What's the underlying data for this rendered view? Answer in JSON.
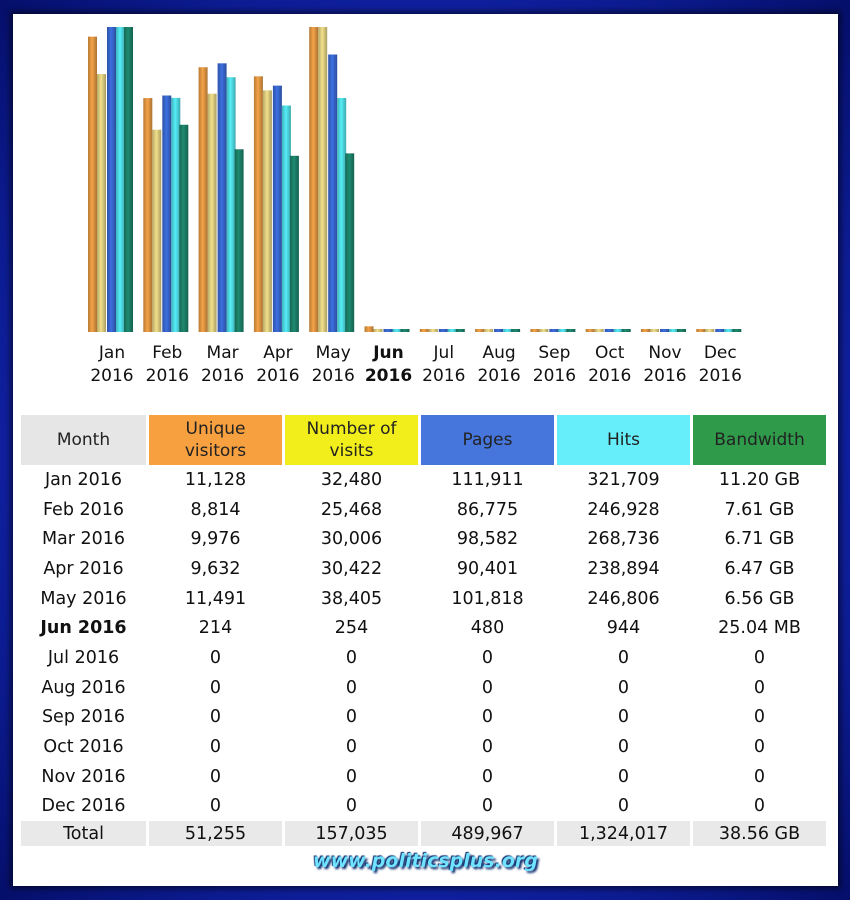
{
  "chart_data": {
    "type": "bar",
    "categories": [
      "Jan 2016",
      "Feb 2016",
      "Mar 2016",
      "Apr 2016",
      "May 2016",
      "Jun 2016",
      "Jul 2016",
      "Aug 2016",
      "Sep 2016",
      "Oct 2016",
      "Nov 2016",
      "Dec 2016"
    ],
    "month_labels": [
      {
        "month": "Jan",
        "year": "2016"
      },
      {
        "month": "Feb",
        "year": "2016"
      },
      {
        "month": "Mar",
        "year": "2016"
      },
      {
        "month": "Apr",
        "year": "2016"
      },
      {
        "month": "May",
        "year": "2016"
      },
      {
        "month": "Jun",
        "year": "2016"
      },
      {
        "month": "Jul",
        "year": "2016"
      },
      {
        "month": "Aug",
        "year": "2016"
      },
      {
        "month": "Sep",
        "year": "2016"
      },
      {
        "month": "Oct",
        "year": "2016"
      },
      {
        "month": "Nov",
        "year": "2016"
      },
      {
        "month": "Dec",
        "year": "2016"
      }
    ],
    "highlight_index": 5,
    "series": [
      {
        "name": "Unique visitors",
        "color": "#f4a347",
        "values": [
          11128,
          8814,
          9976,
          9632,
          11491,
          214,
          0,
          0,
          0,
          0,
          0,
          0
        ]
      },
      {
        "name": "Number of visits",
        "color": "#f2e08a",
        "values": [
          32480,
          25468,
          30006,
          30422,
          38405,
          254,
          0,
          0,
          0,
          0,
          0,
          0
        ]
      },
      {
        "name": "Pages",
        "color": "#3d6fe0",
        "values": [
          111911,
          86775,
          98582,
          90401,
          101818,
          480,
          0,
          0,
          0,
          0,
          0,
          0
        ]
      },
      {
        "name": "Hits",
        "color": "#55eef8",
        "values": [
          321709,
          246928,
          268736,
          238894,
          246806,
          944,
          0,
          0,
          0,
          0,
          0,
          0
        ]
      },
      {
        "name": "Bandwidth",
        "color": "#1e8a70",
        "unit": "GB",
        "values": [
          11.2,
          7.61,
          6.71,
          6.47,
          6.56,
          0.02445,
          0,
          0,
          0,
          0,
          0,
          0
        ]
      }
    ],
    "grid": false,
    "legend": "table below"
  },
  "table": {
    "headers": {
      "month": "Month",
      "unique": [
        "Unique",
        "visitors"
      ],
      "visits": [
        "Number of",
        "visits"
      ],
      "pages": "Pages",
      "hits": "Hits",
      "bandwidth": "Bandwidth"
    },
    "header_colors": {
      "month": "#e6e6e6",
      "unique": "#f7a040",
      "visits": "#f2ee1c",
      "pages": "#4676dc",
      "hits": "#66eefa",
      "bandwidth": "#2e9a4a"
    },
    "rows": [
      [
        "Jan 2016",
        "11,128",
        "32,480",
        "111,911",
        "321,709",
        "11.20 GB"
      ],
      [
        "Feb 2016",
        "8,814",
        "25,468",
        "86,775",
        "246,928",
        "7.61 GB"
      ],
      [
        "Mar 2016",
        "9,976",
        "30,006",
        "98,582",
        "268,736",
        "6.71 GB"
      ],
      [
        "Apr 2016",
        "9,632",
        "30,422",
        "90,401",
        "238,894",
        "6.47 GB"
      ],
      [
        "May 2016",
        "11,491",
        "38,405",
        "101,818",
        "246,806",
        "6.56 GB"
      ],
      [
        "Jun 2016",
        "214",
        "254",
        "480",
        "944",
        "25.04 MB"
      ],
      [
        "Jul 2016",
        "0",
        "0",
        "0",
        "0",
        "0"
      ],
      [
        "Aug 2016",
        "0",
        "0",
        "0",
        "0",
        "0"
      ],
      [
        "Sep 2016",
        "0",
        "0",
        "0",
        "0",
        "0"
      ],
      [
        "Oct 2016",
        "0",
        "0",
        "0",
        "0",
        "0"
      ],
      [
        "Nov 2016",
        "0",
        "0",
        "0",
        "0",
        "0"
      ],
      [
        "Dec 2016",
        "0",
        "0",
        "0",
        "0",
        "0"
      ]
    ],
    "total": [
      "Total",
      "51,255",
      "157,035",
      "489,967",
      "1,324,017",
      "38.56 GB"
    ]
  },
  "watermark": "www.politicsplus.org"
}
